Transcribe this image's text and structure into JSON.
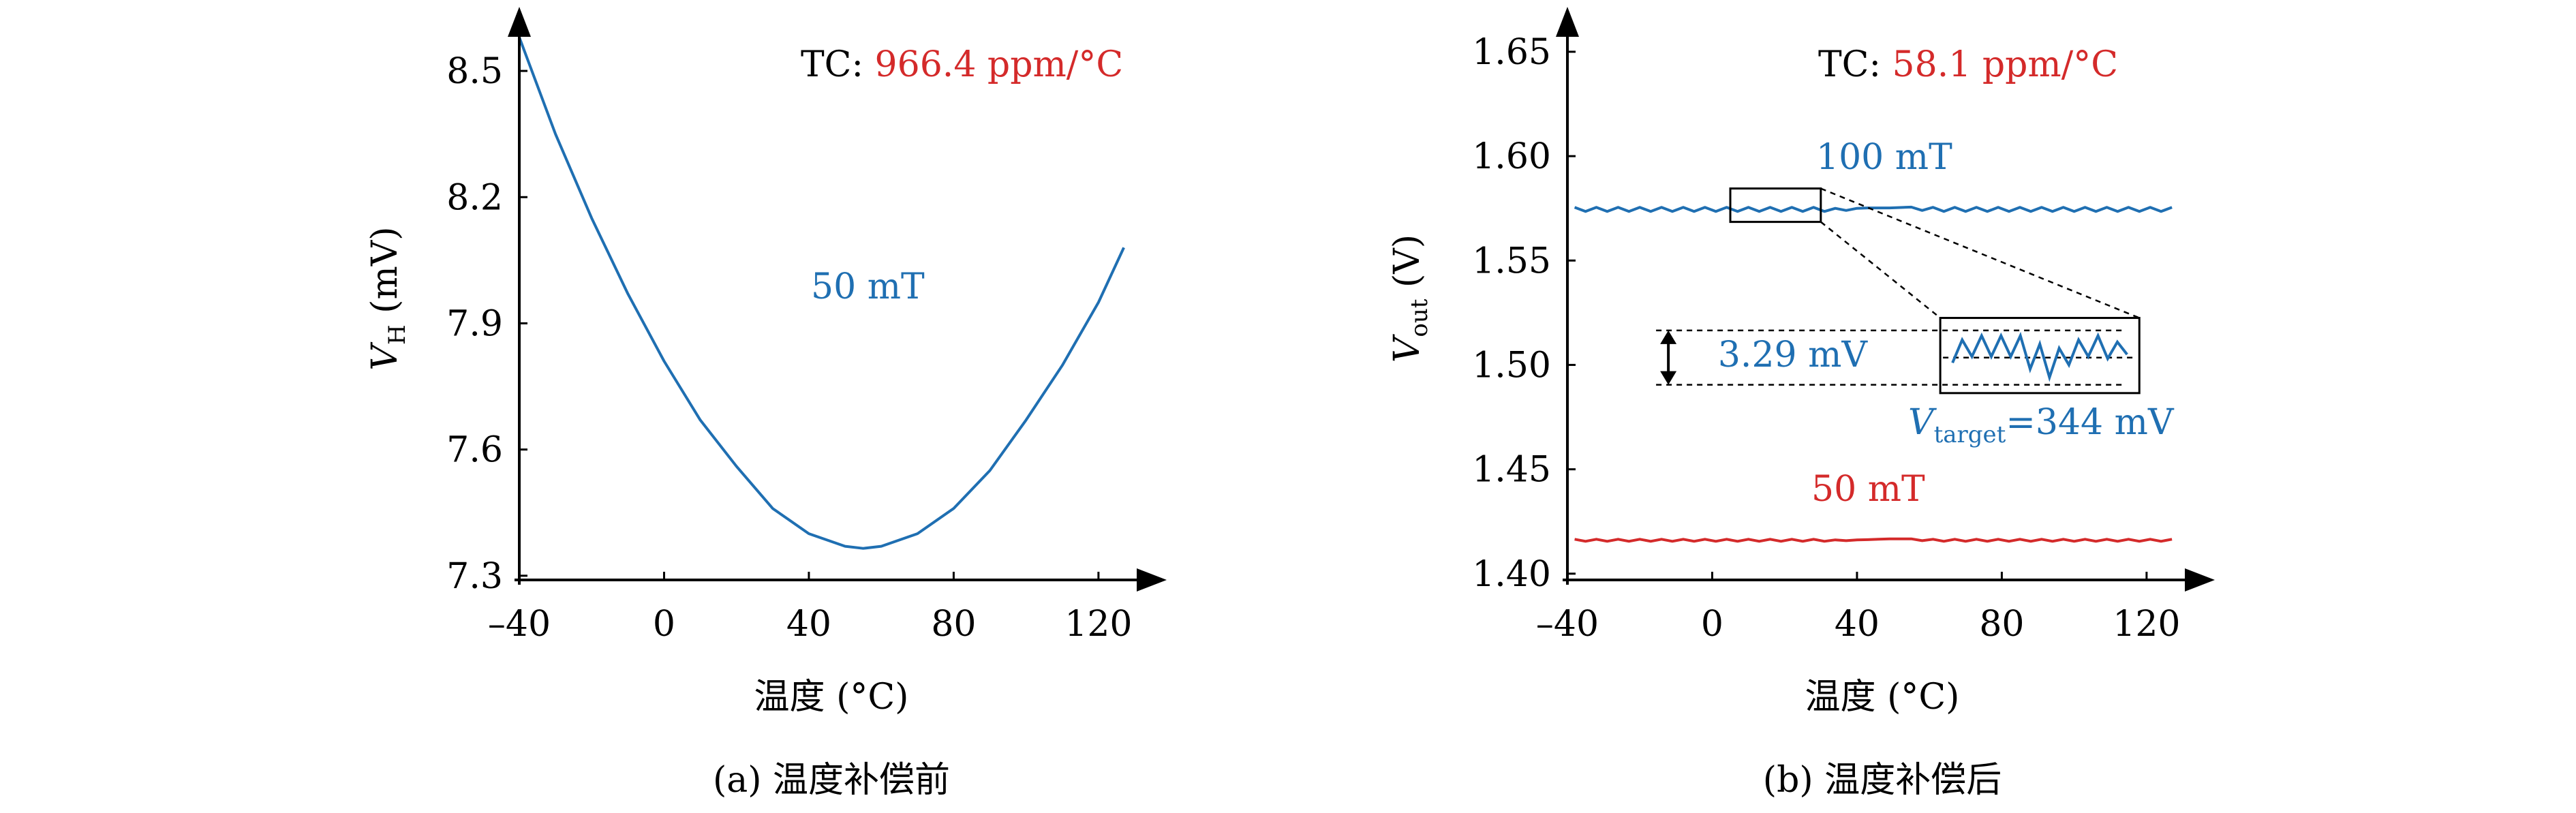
{
  "colors": {
    "blue": "#1f6fb2",
    "red": "#d42a2a",
    "axis": "#000000"
  },
  "chart_data": [
    {
      "id": "a",
      "type": "line",
      "caption": "(a) 温度补偿前",
      "xlabel": "温度 (°C)",
      "ylabel_main": "V",
      "ylabel_sub": "H",
      "ylabel_unit": " (mV)",
      "xlim": [
        -40,
        130
      ],
      "ylim": [
        7.29,
        8.62
      ],
      "xticks": [
        -40,
        0,
        40,
        80,
        120
      ],
      "xtick_labels": [
        "–40",
        "0",
        "40",
        "80",
        "120"
      ],
      "yticks": [
        7.3,
        7.6,
        7.9,
        8.2,
        8.5
      ],
      "ytick_labels": [
        "7.3",
        "7.6",
        "7.9",
        "8.2",
        "8.5"
      ],
      "tc_prefix": "TC: ",
      "tc_value": "966.4 ppm/°C",
      "series": [
        {
          "name": "50 mT",
          "color": "#1f6fb2",
          "x": [
            -40,
            -30,
            -20,
            -10,
            0,
            10,
            20,
            30,
            40,
            50,
            55,
            60,
            70,
            80,
            90,
            100,
            110,
            120,
            127
          ],
          "y": [
            8.58,
            8.35,
            8.15,
            7.97,
            7.81,
            7.67,
            7.56,
            7.46,
            7.4,
            7.37,
            7.365,
            7.37,
            7.4,
            7.46,
            7.55,
            7.67,
            7.8,
            7.95,
            8.08
          ]
        }
      ]
    },
    {
      "id": "b",
      "type": "line",
      "caption": "(b) 温度补偿后",
      "xlabel": "温度 (°C)",
      "ylabel_main": "V",
      "ylabel_sub": "out",
      "ylabel_unit": " (V)",
      "xlim": [
        -40,
        130
      ],
      "ylim": [
        1.397,
        1.665
      ],
      "xticks": [
        -40,
        0,
        40,
        80,
        120
      ],
      "xtick_labels": [
        "–40",
        "0",
        "40",
        "80",
        "120"
      ],
      "yticks": [
        1.4,
        1.45,
        1.5,
        1.55,
        1.6,
        1.65
      ],
      "ytick_labels": [
        "1.40",
        "1.45",
        "1.50",
        "1.55",
        "1.60",
        "1.65"
      ],
      "tc_prefix": "TC: ",
      "tc_value": "58.1 ppm/°C",
      "series": [
        {
          "name": "100 mT",
          "color": "#1f6fb2",
          "x": [
            -38,
            -35,
            -32,
            -29,
            -26,
            -23,
            -20,
            -17,
            -14,
            -11,
            -8,
            -5,
            -2,
            1,
            4,
            7,
            10,
            13,
            16,
            19,
            22,
            25,
            28,
            31,
            34,
            37,
            40,
            43,
            46,
            49,
            52,
            55,
            58,
            61,
            64,
            67,
            70,
            73,
            76,
            79,
            82,
            85,
            88,
            91,
            94,
            97,
            100,
            103,
            106,
            109,
            112,
            115,
            118,
            121,
            124,
            127
          ],
          "y": [
            1.5755,
            1.5735,
            1.5755,
            1.5735,
            1.5755,
            1.5735,
            1.5755,
            1.5735,
            1.5755,
            1.5735,
            1.5755,
            1.5735,
            1.5755,
            1.5735,
            1.5755,
            1.5735,
            1.5755,
            1.5735,
            1.5755,
            1.5735,
            1.5755,
            1.5735,
            1.5755,
            1.5735,
            1.575,
            1.574,
            1.575,
            1.5752,
            1.5752,
            1.5752,
            1.5754,
            1.5756,
            1.574,
            1.5755,
            1.5735,
            1.5755,
            1.5735,
            1.5755,
            1.5735,
            1.5755,
            1.5735,
            1.5755,
            1.5735,
            1.5755,
            1.5735,
            1.5755,
            1.5735,
            1.5755,
            1.5735,
            1.5755,
            1.5735,
            1.5755,
            1.5735,
            1.5755,
            1.5735,
            1.5755
          ]
        },
        {
          "name": "50 mT",
          "color": "#d42a2a",
          "x": [
            -38,
            -35,
            -32,
            -29,
            -26,
            -23,
            -20,
            -17,
            -14,
            -11,
            -8,
            -5,
            -2,
            1,
            4,
            7,
            10,
            13,
            16,
            19,
            22,
            25,
            28,
            31,
            34,
            37,
            40,
            43,
            46,
            49,
            52,
            55,
            58,
            61,
            64,
            67,
            70,
            73,
            76,
            79,
            82,
            85,
            88,
            91,
            94,
            97,
            100,
            103,
            106,
            109,
            112,
            115,
            118,
            121,
            124,
            127
          ],
          "y": [
            1.4165,
            1.4155,
            1.4165,
            1.4155,
            1.4165,
            1.4155,
            1.4165,
            1.4155,
            1.4165,
            1.4155,
            1.4165,
            1.4155,
            1.4165,
            1.4155,
            1.4165,
            1.4155,
            1.4165,
            1.4155,
            1.4165,
            1.4155,
            1.4165,
            1.4155,
            1.4165,
            1.4155,
            1.4162,
            1.4158,
            1.4162,
            1.4163,
            1.4165,
            1.4167,
            1.4167,
            1.4167,
            1.4158,
            1.4165,
            1.4155,
            1.4165,
            1.4155,
            1.4165,
            1.4155,
            1.4165,
            1.4155,
            1.4165,
            1.4155,
            1.4165,
            1.4155,
            1.4165,
            1.4155,
            1.4165,
            1.4155,
            1.4165,
            1.4155,
            1.4165,
            1.4155,
            1.4165,
            1.4155,
            1.4165
          ]
        }
      ],
      "zoom_source": {
        "x": [
          5,
          30
        ],
        "y": [
          1.5685,
          1.5845
        ]
      },
      "zoom_inset": {
        "x": [
          63,
          118
        ],
        "y": [
          1.4865,
          1.5225
        ],
        "wave_y": [
          1.501,
          1.512,
          1.504,
          1.514,
          1.504,
          1.514,
          1.504,
          1.514,
          1.498,
          1.51,
          1.494,
          1.508,
          1.5,
          1.512,
          1.504,
          1.514,
          1.503,
          1.511,
          1.505
        ],
        "dash_levels": [
          1.5165,
          1.5035,
          1.4905
        ]
      },
      "ripple_label": "3.29 mV",
      "target_main": "V",
      "target_sub": "target",
      "target_rest": "=344 mV"
    }
  ]
}
